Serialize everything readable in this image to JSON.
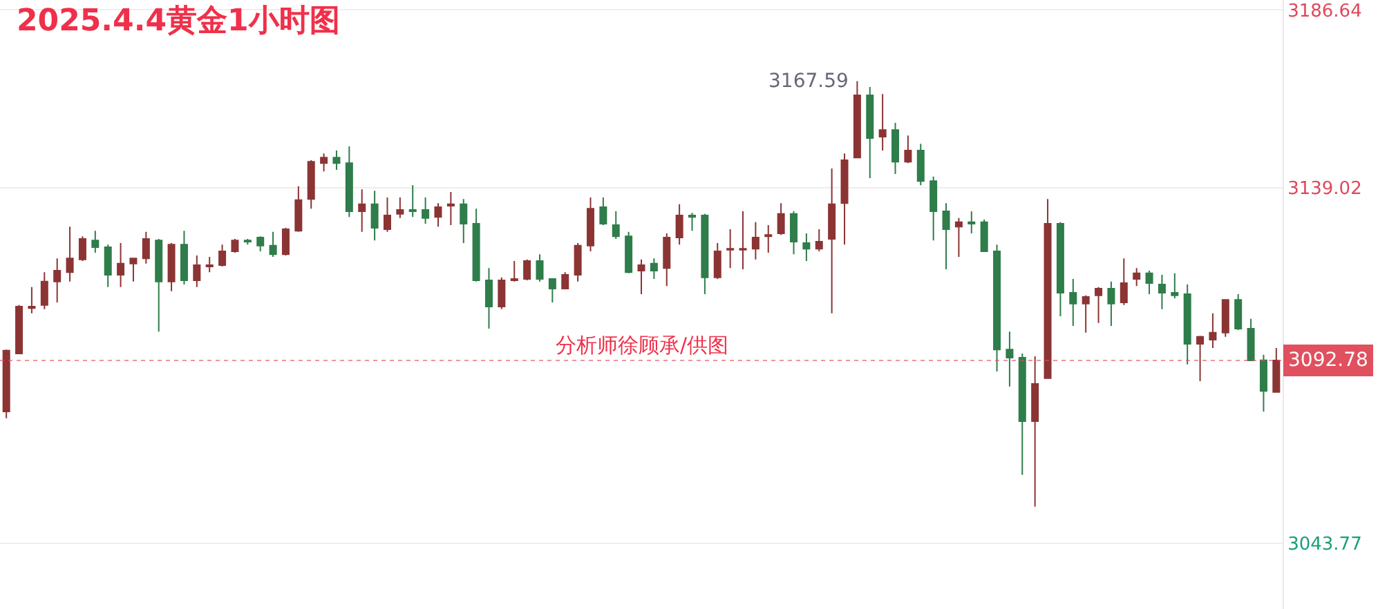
{
  "chart_data": {
    "type": "candlestick",
    "title": "2025.4.4黄金1小时图",
    "categories": [
      null,
      null,
      null,
      null,
      null,
      null,
      null,
      null,
      null,
      null,
      null,
      null,
      null,
      null,
      null,
      null,
      null,
      null,
      null,
      null,
      null,
      null,
      null,
      null,
      null,
      null,
      null,
      null,
      null,
      null,
      null,
      null,
      null,
      null,
      null,
      null,
      null,
      null,
      null,
      null,
      null,
      null,
      null,
      null,
      null,
      null,
      null,
      null,
      null,
      null,
      null,
      null,
      null,
      null,
      null,
      null,
      null,
      null,
      null,
      null,
      null,
      null,
      null,
      null,
      null,
      null,
      null,
      null,
      null,
      null,
      null,
      null,
      null,
      null,
      null,
      null,
      null,
      null,
      null,
      null,
      null,
      null,
      null,
      null,
      null,
      null,
      null,
      null,
      null,
      null,
      null,
      null,
      null,
      null,
      null,
      null,
      null,
      null,
      null,
      null,
      null
    ],
    "ohlc": [
      [
        3079.1,
        3095.7,
        3077.3,
        3095.4
      ],
      [
        3094.6,
        3107.6,
        3094.5,
        3107.2
      ],
      [
        3106.8,
        3112.4,
        3105.4,
        3107.2
      ],
      [
        3107.6,
        3116.4,
        3106.5,
        3113.9
      ],
      [
        3113.9,
        3120.1,
        3108.3,
        3116.8
      ],
      [
        3116.4,
        3128.6,
        3113.9,
        3120.1
      ],
      [
        3119.8,
        3126.0,
        3119.4,
        3125.3
      ],
      [
        3124.9,
        3127.5,
        3121.6,
        3123.1
      ],
      [
        3123.1,
        3123.8,
        3112.4,
        3115.7
      ],
      [
        3115.7,
        3124.2,
        3112.4,
        3118.7
      ],
      [
        3118.7,
        3120.1,
        3113.9,
        3120.1
      ],
      [
        3120.1,
        3127.2,
        3118.7,
        3125.3
      ],
      [
        3124.9,
        3125.3,
        3100.5,
        3113.9
      ],
      [
        3113.9,
        3124.2,
        3111.3,
        3123.8
      ],
      [
        3123.8,
        3127.5,
        3113.1,
        3114.2
      ],
      [
        3114.2,
        3120.9,
        3112.4,
        3118.3
      ],
      [
        3117.9,
        3120.5,
        3116.4,
        3118.3
      ],
      [
        3118.3,
        3123.8,
        3117.9,
        3122.0
      ],
      [
        3122.0,
        3125.3,
        3121.6,
        3124.9
      ],
      [
        3124.9,
        3125.3,
        3123.8,
        3124.6
      ],
      [
        3125.7,
        3126.0,
        3122.0,
        3123.5
      ],
      [
        3123.5,
        3127.2,
        3120.5,
        3121.2
      ],
      [
        3121.2,
        3128.3,
        3120.9,
        3127.9
      ],
      [
        3127.5,
        3139.4,
        3127.2,
        3135.7
      ],
      [
        3136.0,
        3146.4,
        3133.4,
        3146.0
      ],
      [
        3145.6,
        3148.2,
        3143.4,
        3147.1
      ],
      [
        3147.1,
        3149.0,
        3143.8,
        3145.6
      ],
      [
        3145.6,
        3150.1,
        3131.2,
        3132.7
      ],
      [
        3132.7,
        3138.6,
        3127.2,
        3134.6
      ],
      [
        3134.6,
        3138.2,
        3124.9,
        3128.3
      ],
      [
        3127.9,
        3136.4,
        3127.2,
        3131.6
      ],
      [
        3132.0,
        3136.4,
        3130.9,
        3133.1
      ],
      [
        3133.1,
        3139.7,
        3131.2,
        3132.7
      ],
      [
        3133.1,
        3136.4,
        3129.4,
        3130.9
      ],
      [
        3131.2,
        3134.9,
        3128.6,
        3133.8
      ],
      [
        3134.2,
        3137.9,
        3129.0,
        3134.6
      ],
      [
        3134.6,
        3136.0,
        3124.2,
        3129.4
      ],
      [
        3129.4,
        3133.4,
        3113.9,
        3114.2
      ],
      [
        3114.2,
        3117.5,
        3101.3,
        3107.2
      ],
      [
        3107.2,
        3115.0,
        3106.5,
        3114.2
      ],
      [
        3114.2,
        3119.4,
        3113.9,
        3114.6
      ],
      [
        3114.6,
        3119.8,
        3114.2,
        3119.4
      ],
      [
        3119.4,
        3121.2,
        3113.9,
        3114.6
      ],
      [
        3114.6,
        3114.6,
        3108.3,
        3112.0
      ],
      [
        3112.0,
        3116.4,
        3112.0,
        3115.7
      ],
      [
        3115.7,
        3124.2,
        3113.9,
        3123.5
      ],
      [
        3123.5,
        3136.4,
        3122.0,
        3133.4
      ],
      [
        3133.8,
        3136.4,
        3129.0,
        3129.4
      ],
      [
        3129.0,
        3132.7,
        3125.3,
        3126.0
      ],
      [
        3126.0,
        3127.2,
        3116.1,
        3116.4
      ],
      [
        3116.8,
        3119.8,
        3110.5,
        3118.3
      ],
      [
        3118.7,
        3120.1,
        3114.6,
        3116.8
      ],
      [
        3117.5,
        3126.8,
        3112.7,
        3125.7
      ],
      [
        3125.7,
        3134.6,
        3123.8,
        3131.6
      ],
      [
        3131.6,
        3132.3,
        3127.5,
        3131.2
      ],
      [
        3131.6,
        3132.0,
        3110.5,
        3115.0
      ],
      [
        3115.0,
        3124.2,
        3114.6,
        3122.0
      ],
      [
        3122.4,
        3127.9,
        3117.5,
        3122.7
      ],
      [
        3122.4,
        3132.7,
        3117.2,
        3122.7
      ],
      [
        3122.7,
        3129.8,
        3119.8,
        3125.7
      ],
      [
        3126.0,
        3129.0,
        3121.6,
        3126.4
      ],
      [
        3126.8,
        3134.9,
        3126.4,
        3132.0
      ],
      [
        3132.0,
        3132.7,
        3121.2,
        3124.6
      ],
      [
        3124.2,
        3126.8,
        3119.4,
        3122.7
      ],
      [
        3122.7,
        3127.9,
        3122.0,
        3124.6
      ],
      [
        3125.3,
        3144.2,
        3105.4,
        3134.6
      ],
      [
        3134.9,
        3148.2,
        3123.8,
        3146.4
      ],
      [
        3147.1,
        3167.59,
        3147.1,
        3163.8
      ],
      [
        3163.8,
        3166.0,
        3141.6,
        3152.3
      ],
      [
        3152.7,
        3164.1,
        3149.0,
        3154.5
      ],
      [
        3154.5,
        3156.4,
        3142.7,
        3146.0
      ],
      [
        3146.0,
        3153.0,
        3145.6,
        3149.0
      ],
      [
        3149.0,
        3150.8,
        3139.7,
        3140.8
      ],
      [
        3140.8,
        3142.0,
        3124.9,
        3132.7
      ],
      [
        3132.7,
        3134.9,
        3117.2,
        3127.9
      ],
      [
        3128.6,
        3130.9,
        3120.5,
        3129.8
      ],
      [
        3129.8,
        3132.7,
        3126.8,
        3129.4
      ],
      [
        3129.8,
        3130.5,
        3122.0,
        3122.0
      ],
      [
        3122.0,
        3123.8,
        3089.8,
        3095.7
      ],
      [
        3095.7,
        3100.5,
        3085.8,
        3093.5
      ],
      [
        3093.5,
        3094.6,
        3062.1,
        3076.5
      ],
      [
        3076.5,
        3093.9,
        3053.6,
        3086.5
      ],
      [
        3088.0,
        3136.0,
        3088.0,
        3129.4
      ],
      [
        3129.4,
        3129.8,
        3104.6,
        3110.9
      ],
      [
        3110.9,
        3114.6,
        3102.0,
        3108.0
      ],
      [
        3108.0,
        3110.2,
        3100.2,
        3109.8
      ],
      [
        3110.2,
        3112.4,
        3102.8,
        3112.0
      ],
      [
        3112.0,
        3113.9,
        3102.0,
        3108.0
      ],
      [
        3108.3,
        3120.1,
        3107.6,
        3113.5
      ],
      [
        3114.6,
        3117.5,
        3112.7,
        3116.1
      ],
      [
        3116.1,
        3116.8,
        3110.5,
        3113.5
      ],
      [
        3113.1,
        3115.7,
        3106.5,
        3110.9
      ],
      [
        3110.9,
        3116.1,
        3109.4,
        3110.2
      ],
      [
        3110.5,
        3113.1,
        3091.7,
        3097.2
      ],
      [
        3097.2,
        3099.4,
        3087.2,
        3099.1
      ],
      [
        3098.3,
        3105.4,
        3096.1,
        3100.2
      ],
      [
        3100.2,
        3109.0,
        3099.1,
        3109.0
      ],
      [
        3109.0,
        3110.5,
        3100.9,
        3101.3
      ],
      [
        3101.3,
        3103.9,
        3092.78,
        3092.78
      ],
      [
        3092.8,
        3094.3,
        3079.1,
        3084.6
      ],
      [
        3084.3,
        3096.1,
        3084.3,
        3092.78
      ]
    ],
    "colors": [
      "#8c3434",
      "#8c3434",
      "#8c3434",
      "#8c3434",
      "#8c3434",
      "#8c3434",
      "#8c3434",
      "#2e7d4b",
      "#2e7d4b",
      "#8c3434",
      "#8c3434",
      "#8c3434",
      "#2e7d4b",
      "#8c3434",
      "#2e7d4b",
      "#8c3434",
      "#8c3434",
      "#8c3434",
      "#8c3434",
      "#2e7d4b",
      "#2e7d4b",
      "#2e7d4b",
      "#8c3434",
      "#8c3434",
      "#8c3434",
      "#8c3434",
      "#2e7d4b",
      "#2e7d4b",
      "#8c3434",
      "#2e7d4b",
      "#8c3434",
      "#8c3434",
      "#2e7d4b",
      "#2e7d4b",
      "#8c3434",
      "#8c3434",
      "#2e7d4b",
      "#2e7d4b",
      "#2e7d4b",
      "#8c3434",
      "#8c3434",
      "#8c3434",
      "#2e7d4b",
      "#2e7d4b",
      "#8c3434",
      "#8c3434",
      "#8c3434",
      "#2e7d4b",
      "#2e7d4b",
      "#2e7d4b",
      "#8c3434",
      "#2e7d4b",
      "#8c3434",
      "#8c3434",
      "#2e7d4b",
      "#2e7d4b",
      "#8c3434",
      "#8c3434",
      "#8c3434",
      "#8c3434",
      "#8c3434",
      "#8c3434",
      "#2e7d4b",
      "#2e7d4b",
      "#8c3434",
      "#8c3434",
      "#8c3434",
      "#8c3434",
      "#2e7d4b",
      "#8c3434",
      "#2e7d4b",
      "#8c3434",
      "#2e7d4b",
      "#2e7d4b",
      "#2e7d4b",
      "#8c3434",
      "#2e7d4b",
      "#2e7d4b",
      "#2e7d4b",
      "#2e7d4b",
      "#2e7d4b",
      "#8c3434",
      "#8c3434",
      "#2e7d4b",
      "#2e7d4b",
      "#8c3434",
      "#8c3434",
      "#2e7d4b",
      "#8c3434",
      "#8c3434",
      "#2e7d4b",
      "#2e7d4b",
      "#2e7d4b",
      "#2e7d4b",
      "#8c3434",
      "#8c3434",
      "#8c3434",
      "#2e7d4b",
      "#2e7d4b",
      "#2e7d4b",
      "#8c3434"
    ],
    "ylim": [
      3026.2,
      3189.3
    ],
    "yticks": [
      3186.64,
      3139.02,
      3043.77
    ],
    "grid": "y",
    "ref_lines": [
      {
        "axis": "y",
        "value": 3092.78,
        "label": "3092.78",
        "color": "#e0505e",
        "line_style": "dotted"
      }
    ],
    "annotations": [
      "3167.59",
      "分析师徐顾承/供图"
    ]
  }
}
